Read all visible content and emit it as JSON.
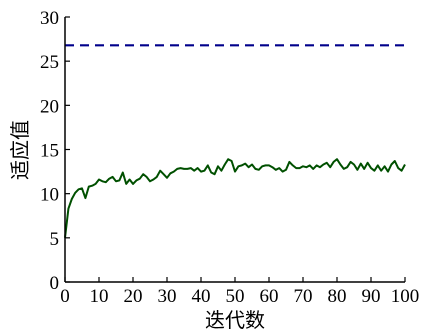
{
  "chart_data": {
    "type": "line",
    "title": "",
    "xlabel": "迭代数",
    "ylabel": "适应值",
    "xlim": [
      0,
      100
    ],
    "ylim": [
      0,
      30
    ],
    "xticks": [
      0,
      10,
      20,
      30,
      40,
      50,
      60,
      70,
      80,
      90,
      100
    ],
    "yticks": [
      0,
      5,
      10,
      15,
      20,
      25,
      30
    ],
    "grid": false,
    "legend": "none",
    "series": [
      {
        "color": "#005000",
        "style": "solid",
        "x": [
          0,
          1,
          2,
          3,
          4,
          5,
          6,
          7,
          8,
          9,
          10,
          11,
          12,
          13,
          14,
          15,
          16,
          17,
          18,
          19,
          20,
          21,
          22,
          23,
          24,
          25,
          26,
          27,
          28,
          29,
          30,
          31,
          32,
          33,
          34,
          35,
          36,
          37,
          38,
          39,
          40,
          41,
          42,
          43,
          44,
          45,
          46,
          47,
          48,
          49,
          50,
          51,
          52,
          53,
          54,
          55,
          56,
          57,
          58,
          59,
          60,
          61,
          62,
          63,
          64,
          65,
          66,
          67,
          68,
          69,
          70,
          71,
          72,
          73,
          74,
          75,
          76,
          77,
          78,
          79,
          80,
          81,
          82,
          83,
          84,
          85,
          86,
          87,
          88,
          89,
          90,
          91,
          92,
          93,
          94,
          95,
          96,
          97,
          98,
          99,
          100
        ],
        "values": [
          5.0,
          8.3,
          9.4,
          10.1,
          10.5,
          10.6,
          9.5,
          10.8,
          10.9,
          11.1,
          11.6,
          11.4,
          11.3,
          11.7,
          11.9,
          11.4,
          11.5,
          12.4,
          11.1,
          11.6,
          11.1,
          11.5,
          11.7,
          12.2,
          11.9,
          11.4,
          11.6,
          11.9,
          12.6,
          12.2,
          11.8,
          12.3,
          12.5,
          12.8,
          12.9,
          12.8,
          12.8,
          12.9,
          12.6,
          12.9,
          12.5,
          12.6,
          13.2,
          12.4,
          12.2,
          13.1,
          12.6,
          13.3,
          13.9,
          13.7,
          12.5,
          13.1,
          13.2,
          13.4,
          13.0,
          13.3,
          12.8,
          12.7,
          13.1,
          13.2,
          13.2,
          13.0,
          12.7,
          12.9,
          12.5,
          12.7,
          13.6,
          13.2,
          12.9,
          12.9,
          13.1,
          13.0,
          13.2,
          12.8,
          13.2,
          13.0,
          13.3,
          13.5,
          13.0,
          13.6,
          13.9,
          13.3,
          12.8,
          13.0,
          13.6,
          13.3,
          12.7,
          13.4,
          12.8,
          13.5,
          12.9,
          12.6,
          13.2,
          12.6,
          13.1,
          12.5,
          13.3,
          13.7,
          12.9,
          12.6,
          13.3
        ]
      },
      {
        "color": "#00008b",
        "style": "dashed",
        "x": [
          0,
          100
        ],
        "values": [
          26.8,
          26.8
        ]
      }
    ]
  }
}
